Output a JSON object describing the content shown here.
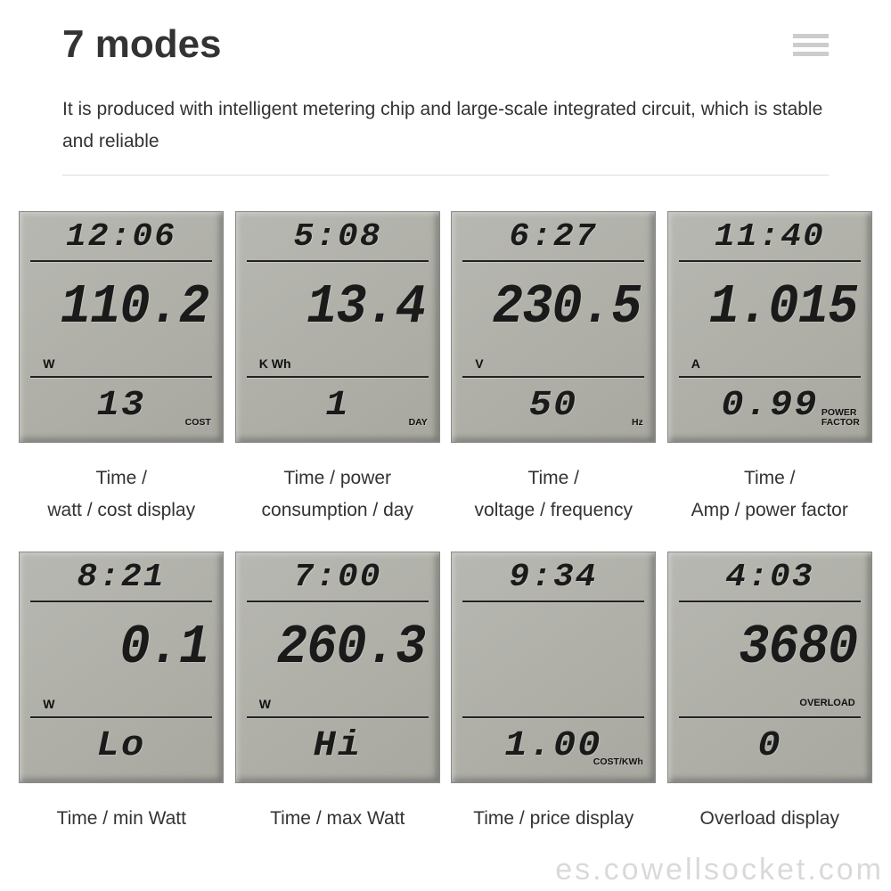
{
  "header": {
    "title": "7 modes"
  },
  "description": "It is produced with intelligent metering chip and large-scale integrated circuit, which is stable and reliable",
  "lcd_style": {
    "background": "#a8a8a0",
    "digit_color": "#1a1a1a",
    "divider_color": "#222222",
    "font": "seven-segment"
  },
  "displays": [
    {
      "time": "12:06",
      "main_value": "110.2",
      "unit": "W",
      "unit_align": "left",
      "bottom_value": "13",
      "bottom_label": "COST",
      "caption": "Time /\nwatt / cost display"
    },
    {
      "time": "5:08",
      "main_value": "13.4",
      "unit": "K Wh",
      "unit_align": "left",
      "bottom_value": "1",
      "bottom_label": "DAY",
      "caption": "Time / power\nconsumption / day"
    },
    {
      "time": "6:27",
      "main_value": "230.5",
      "unit": "V",
      "unit_align": "left",
      "bottom_value": "50",
      "bottom_label": "Hz",
      "caption": "Time /\nvoltage / frequency"
    },
    {
      "time": "11:40",
      "main_value": "1.015",
      "unit": "A",
      "unit_align": "left",
      "bottom_value": "0.99",
      "bottom_label": "POWER\nFACTOR",
      "caption": "Time /\nAmp / power factor"
    },
    {
      "time": "8:21",
      "main_value": "0.1",
      "unit": "W",
      "unit_align": "left",
      "bottom_value": "Lo",
      "bottom_label": "",
      "caption": "Time / min Watt"
    },
    {
      "time": "7:00",
      "main_value": "260.3",
      "unit": "W",
      "unit_align": "left",
      "bottom_value": "Hi",
      "bottom_label": "",
      "caption": "Time / max Watt"
    },
    {
      "time": "9:34",
      "main_value": "",
      "unit": "",
      "unit_align": "left",
      "bottom_value": "1.00",
      "bottom_label": "COST/KWh",
      "caption": "Time / price display"
    },
    {
      "time": "4:03",
      "main_value": "3680",
      "unit": "OVERLOAD",
      "unit_align": "right",
      "bottom_value": "0",
      "bottom_label": "",
      "caption": "Overload display"
    }
  ],
  "watermark": "es.cowellsocket.com"
}
